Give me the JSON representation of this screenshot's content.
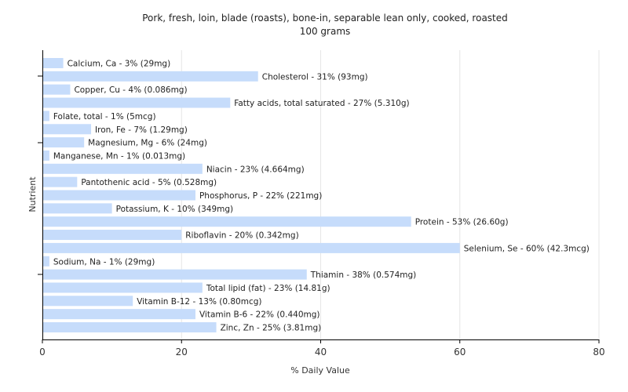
{
  "chart_data": {
    "type": "bar",
    "orientation": "horizontal",
    "title": "Pork, fresh, loin, blade (roasts), bone-in, separable lean only, cooked, roasted",
    "subtitle": "100 grams",
    "xlabel": "% Daily Value",
    "ylabel": "Nutrient",
    "xlim": [
      0,
      80
    ],
    "xticks": [
      0,
      20,
      40,
      60,
      80
    ],
    "grid": true,
    "bar_color": "#c6dcfb",
    "categories": [
      "Calcium, Ca",
      "Cholesterol",
      "Copper, Cu",
      "Fatty acids, total saturated",
      "Folate, total",
      "Iron, Fe",
      "Magnesium, Mg",
      "Manganese, Mn",
      "Niacin",
      "Pantothenic acid",
      "Phosphorus, P",
      "Potassium, K",
      "Protein",
      "Riboflavin",
      "Selenium, Se",
      "Sodium, Na",
      "Thiamin",
      "Total lipid (fat)",
      "Vitamin B-12",
      "Vitamin B-6",
      "Zinc, Zn"
    ],
    "values": [
      3,
      31,
      4,
      27,
      1,
      7,
      6,
      1,
      23,
      5,
      22,
      10,
      53,
      20,
      60,
      1,
      38,
      23,
      13,
      22,
      25
    ],
    "labels": [
      "Calcium, Ca - 3% (29mg)",
      "Cholesterol - 31% (93mg)",
      "Copper, Cu - 4% (0.086mg)",
      "Fatty acids, total saturated - 27% (5.310g)",
      "Folate, total - 1% (5mcg)",
      "Iron, Fe - 7% (1.29mg)",
      "Magnesium, Mg - 6% (24mg)",
      "Manganese, Mn - 1% (0.013mg)",
      "Niacin - 23% (4.664mg)",
      "Pantothenic acid - 5% (0.528mg)",
      "Phosphorus, P - 22% (221mg)",
      "Potassium, K - 10% (349mg)",
      "Protein - 53% (26.60g)",
      "Riboflavin - 20% (0.342mg)",
      "Selenium, Se - 60% (42.3mcg)",
      "Sodium, Na - 1% (29mg)",
      "Thiamin - 38% (0.574mg)",
      "Total lipid (fat) - 23% (14.81g)",
      "Vitamin B-12 - 13% (0.80mcg)",
      "Vitamin B-6 - 22% (0.440mg)",
      "Zinc, Zn - 25% (3.81mg)"
    ]
  }
}
